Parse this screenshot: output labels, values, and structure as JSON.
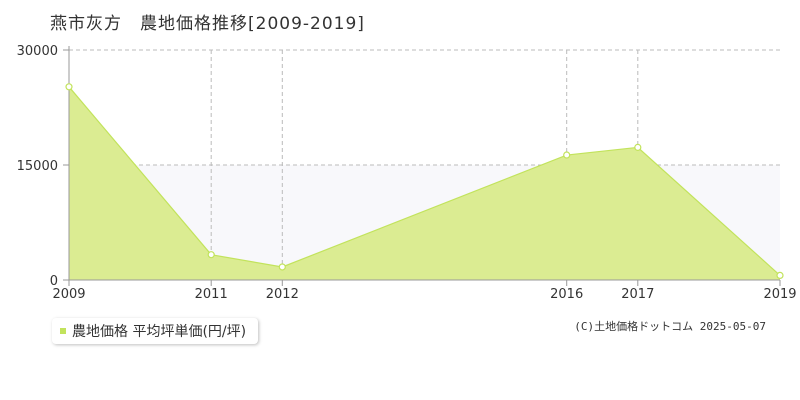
{
  "header": {
    "title": "燕市灰方　農地価格推移[2009-2019]"
  },
  "legend": {
    "label": "農地価格 平均坪単価(円/坪)"
  },
  "footer": {
    "copyright": "(C)土地価格ドットコム 2025-05-07"
  },
  "colors": {
    "fill": "#dbec92",
    "line": "#c2e35c",
    "band": "#f8f8fb",
    "grid": "#bbbbbb",
    "axis": "#999999"
  },
  "chart_data": {
    "type": "area",
    "title": "燕市灰方　農地価格推移[2009-2019]",
    "xlabel": "",
    "ylabel": "",
    "categories": [
      "2009",
      "2011",
      "2012",
      "2016",
      "2017",
      "2019"
    ],
    "series": [
      {
        "name": "農地価格 平均坪単価(円/坪)",
        "values": [
          25200,
          3300,
          1700,
          16300,
          17300,
          600
        ]
      }
    ],
    "y_ticks": [
      "0",
      "15000",
      "30000"
    ],
    "ylim": [
      0,
      30000
    ],
    "grid": true,
    "legend_position": "bottom-left"
  }
}
